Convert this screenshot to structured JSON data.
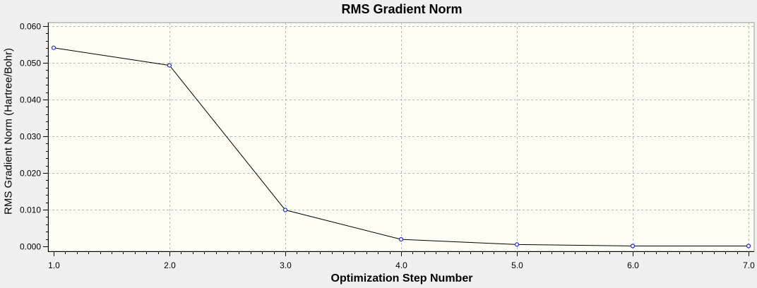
{
  "chart_data": {
    "type": "line",
    "title": "RMS Gradient Norm",
    "xlabel": "Optimization Step Number",
    "ylabel": "RMS Gradient Norm (Hartree/Bohr)",
    "xlim": [
      1.0,
      7.0
    ],
    "ylim": [
      0.0,
      0.06
    ],
    "x_ticks": [
      "1.0",
      "2.0",
      "3.0",
      "4.0",
      "5.0",
      "6.0",
      "7.0"
    ],
    "y_ticks": [
      "0.000",
      "0.010",
      "0.020",
      "0.030",
      "0.040",
      "0.050",
      "0.060"
    ],
    "grid": true,
    "legend": "none",
    "series": [
      {
        "x": [
          1,
          2,
          3,
          4,
          5,
          6,
          7
        ],
        "values": [
          0.0541,
          0.0493,
          0.0099,
          0.0019,
          0.0005,
          0.0001,
          0.0001
        ]
      }
    ],
    "colors": {
      "plot_background": "#fefef5",
      "page_background": "#f0f0f0",
      "line": "#000000",
      "marker_fill": "#ffffff",
      "marker_stroke": "#1e2ad4",
      "grid": "#b8b8b8"
    }
  }
}
